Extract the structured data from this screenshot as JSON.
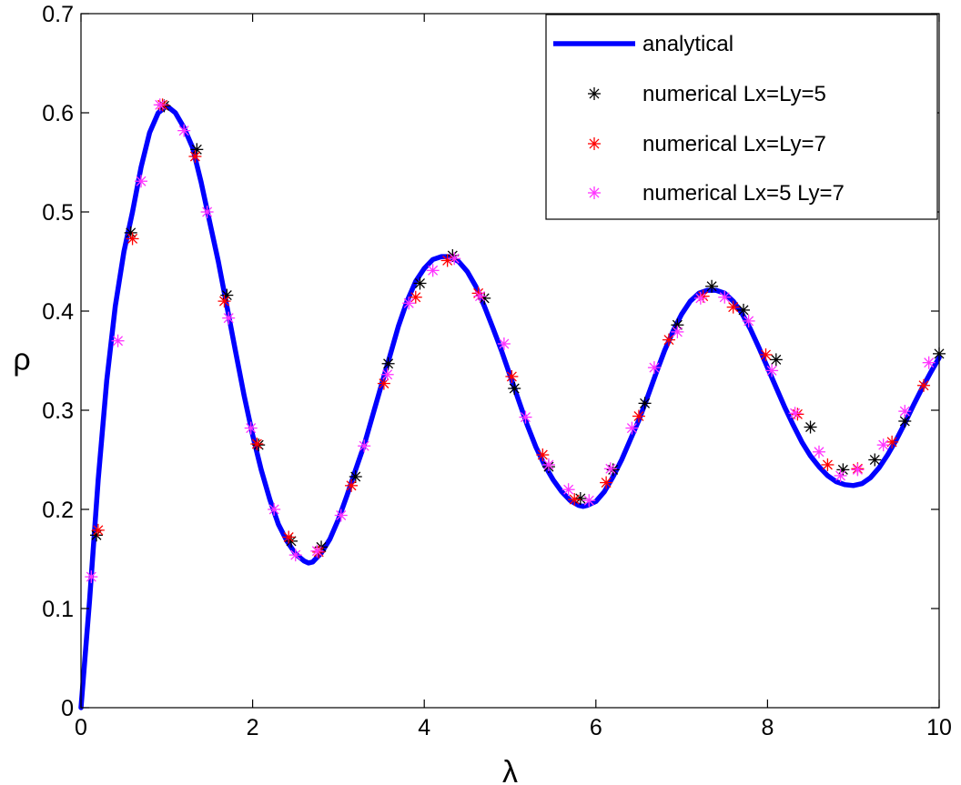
{
  "chart_data": {
    "type": "line",
    "title": "",
    "xlabel": "λ",
    "ylabel": "ρ",
    "xlim": [
      0,
      10
    ],
    "ylim": [
      0,
      0.7
    ],
    "xticks": [
      0,
      2,
      4,
      6,
      8,
      10
    ],
    "yticks": [
      0,
      0.1,
      0.2,
      0.3,
      0.4,
      0.5,
      0.6,
      0.7
    ],
    "xtick_labels": [
      "0",
      "2",
      "4",
      "6",
      "8",
      "10"
    ],
    "ytick_labels": [
      "0",
      "0.1",
      "0.2",
      "0.3",
      "0.4",
      "0.5",
      "0.6",
      "0.7"
    ],
    "grid": false,
    "legend_position": "top-right",
    "series": [
      {
        "name": "analytical",
        "style": "line",
        "color": "#0000ff",
        "points": [
          [
            0,
            0
          ],
          [
            0.1,
            0.108
          ],
          [
            0.2,
            0.23
          ],
          [
            0.3,
            0.33
          ],
          [
            0.4,
            0.405
          ],
          [
            0.5,
            0.46
          ],
          [
            0.6,
            0.5
          ],
          [
            0.7,
            0.545
          ],
          [
            0.8,
            0.58
          ],
          [
            0.9,
            0.6
          ],
          [
            1.0,
            0.607
          ],
          [
            1.1,
            0.6
          ],
          [
            1.2,
            0.585
          ],
          [
            1.3,
            0.565
          ],
          [
            1.4,
            0.53
          ],
          [
            1.5,
            0.49
          ],
          [
            1.6,
            0.45
          ],
          [
            1.7,
            0.405
          ],
          [
            1.8,
            0.36
          ],
          [
            1.9,
            0.315
          ],
          [
            2.0,
            0.275
          ],
          [
            2.1,
            0.24
          ],
          [
            2.2,
            0.21
          ],
          [
            2.3,
            0.185
          ],
          [
            2.4,
            0.168
          ],
          [
            2.5,
            0.155
          ],
          [
            2.6,
            0.148
          ],
          [
            2.65,
            0.146
          ],
          [
            2.7,
            0.147
          ],
          [
            2.8,
            0.156
          ],
          [
            2.9,
            0.17
          ],
          [
            3.0,
            0.19
          ],
          [
            3.1,
            0.214
          ],
          [
            3.2,
            0.24
          ],
          [
            3.3,
            0.265
          ],
          [
            3.4,
            0.295
          ],
          [
            3.5,
            0.325
          ],
          [
            3.6,
            0.355
          ],
          [
            3.7,
            0.385
          ],
          [
            3.8,
            0.41
          ],
          [
            3.9,
            0.43
          ],
          [
            4.0,
            0.443
          ],
          [
            4.1,
            0.452
          ],
          [
            4.2,
            0.455
          ],
          [
            4.3,
            0.455
          ],
          [
            4.4,
            0.45
          ],
          [
            4.5,
            0.44
          ],
          [
            4.6,
            0.425
          ],
          [
            4.7,
            0.405
          ],
          [
            4.8,
            0.383
          ],
          [
            4.9,
            0.36
          ],
          [
            5.0,
            0.335
          ],
          [
            5.1,
            0.31
          ],
          [
            5.2,
            0.285
          ],
          [
            5.3,
            0.263
          ],
          [
            5.4,
            0.245
          ],
          [
            5.5,
            0.23
          ],
          [
            5.6,
            0.218
          ],
          [
            5.7,
            0.209
          ],
          [
            5.8,
            0.204
          ],
          [
            5.85,
            0.203
          ],
          [
            5.9,
            0.204
          ],
          [
            6.0,
            0.208
          ],
          [
            6.1,
            0.218
          ],
          [
            6.2,
            0.233
          ],
          [
            6.3,
            0.25
          ],
          [
            6.4,
            0.27
          ],
          [
            6.5,
            0.29
          ],
          [
            6.6,
            0.313
          ],
          [
            6.7,
            0.337
          ],
          [
            6.8,
            0.36
          ],
          [
            6.9,
            0.38
          ],
          [
            7.0,
            0.397
          ],
          [
            7.1,
            0.41
          ],
          [
            7.2,
            0.418
          ],
          [
            7.3,
            0.421
          ],
          [
            7.4,
            0.421
          ],
          [
            7.5,
            0.418
          ],
          [
            7.6,
            0.41
          ],
          [
            7.7,
            0.398
          ],
          [
            7.8,
            0.382
          ],
          [
            7.9,
            0.363
          ],
          [
            8.0,
            0.343
          ],
          [
            8.1,
            0.323
          ],
          [
            8.2,
            0.303
          ],
          [
            8.3,
            0.285
          ],
          [
            8.4,
            0.268
          ],
          [
            8.5,
            0.254
          ],
          [
            8.6,
            0.243
          ],
          [
            8.7,
            0.234
          ],
          [
            8.8,
            0.228
          ],
          [
            8.9,
            0.225
          ],
          [
            9.0,
            0.224
          ],
          [
            9.1,
            0.226
          ],
          [
            9.2,
            0.232
          ],
          [
            9.3,
            0.242
          ],
          [
            9.4,
            0.255
          ],
          [
            9.5,
            0.27
          ],
          [
            9.6,
            0.287
          ],
          [
            9.7,
            0.305
          ],
          [
            9.8,
            0.322
          ],
          [
            9.9,
            0.338
          ],
          [
            10.0,
            0.353
          ]
        ]
      },
      {
        "name": "numerical Lx=Ly=5",
        "style": "markers",
        "marker": "asterisk",
        "color": "#000000",
        "points": [
          [
            0.18,
            0.174
          ],
          [
            0.58,
            0.479
          ],
          [
            0.97,
            0.607
          ],
          [
            1.35,
            0.563
          ],
          [
            1.7,
            0.416
          ],
          [
            2.07,
            0.265
          ],
          [
            2.45,
            0.168
          ],
          [
            2.8,
            0.162
          ],
          [
            3.2,
            0.233
          ],
          [
            3.58,
            0.347
          ],
          [
            3.95,
            0.428
          ],
          [
            4.33,
            0.456
          ],
          [
            4.7,
            0.413
          ],
          [
            5.05,
            0.322
          ],
          [
            5.45,
            0.243
          ],
          [
            5.82,
            0.211
          ],
          [
            6.2,
            0.24
          ],
          [
            6.57,
            0.307
          ],
          [
            6.95,
            0.386
          ],
          [
            7.35,
            0.425
          ],
          [
            7.72,
            0.401
          ],
          [
            8.1,
            0.351
          ],
          [
            8.5,
            0.283
          ],
          [
            8.88,
            0.24
          ],
          [
            9.25,
            0.25
          ],
          [
            9.6,
            0.289
          ],
          [
            10.0,
            0.357
          ]
        ]
      },
      {
        "name": "numerical Lx=Ly=7",
        "style": "markers",
        "marker": "asterisk",
        "color": "#ff0000",
        "points": [
          [
            0.2,
            0.179
          ],
          [
            0.6,
            0.473
          ],
          [
            0.95,
            0.608
          ],
          [
            1.33,
            0.556
          ],
          [
            1.67,
            0.41
          ],
          [
            2.05,
            0.266
          ],
          [
            2.42,
            0.172
          ],
          [
            2.77,
            0.157
          ],
          [
            3.15,
            0.224
          ],
          [
            3.53,
            0.327
          ],
          [
            3.9,
            0.414
          ],
          [
            4.27,
            0.451
          ],
          [
            4.63,
            0.418
          ],
          [
            5.02,
            0.334
          ],
          [
            5.38,
            0.255
          ],
          [
            5.75,
            0.21
          ],
          [
            6.12,
            0.227
          ],
          [
            6.5,
            0.294
          ],
          [
            6.85,
            0.371
          ],
          [
            7.25,
            0.415
          ],
          [
            7.6,
            0.404
          ],
          [
            7.98,
            0.356
          ],
          [
            8.35,
            0.296
          ],
          [
            8.7,
            0.245
          ],
          [
            9.05,
            0.241
          ],
          [
            9.45,
            0.268
          ],
          [
            9.82,
            0.325
          ]
        ]
      },
      {
        "name": "numerical Lx=5 Ly=7",
        "style": "markers",
        "marker": "asterisk",
        "color": "#ff33ff",
        "points": [
          [
            0.12,
            0.132
          ],
          [
            0.43,
            0.37
          ],
          [
            0.7,
            0.531
          ],
          [
            0.92,
            0.608
          ],
          [
            1.2,
            0.582
          ],
          [
            1.47,
            0.5
          ],
          [
            1.72,
            0.393
          ],
          [
            1.98,
            0.282
          ],
          [
            2.25,
            0.2
          ],
          [
            2.5,
            0.154
          ],
          [
            2.75,
            0.158
          ],
          [
            3.03,
            0.194
          ],
          [
            3.3,
            0.264
          ],
          [
            3.57,
            0.336
          ],
          [
            3.82,
            0.408
          ],
          [
            4.1,
            0.441
          ],
          [
            4.35,
            0.453
          ],
          [
            4.65,
            0.415
          ],
          [
            4.93,
            0.367
          ],
          [
            5.18,
            0.293
          ],
          [
            5.45,
            0.245
          ],
          [
            5.68,
            0.22
          ],
          [
            5.92,
            0.209
          ],
          [
            6.17,
            0.241
          ],
          [
            6.42,
            0.282
          ],
          [
            6.68,
            0.343
          ],
          [
            6.95,
            0.379
          ],
          [
            7.22,
            0.413
          ],
          [
            7.5,
            0.414
          ],
          [
            7.78,
            0.39
          ],
          [
            8.05,
            0.34
          ],
          [
            8.32,
            0.297
          ],
          [
            8.6,
            0.258
          ],
          [
            8.85,
            0.234
          ],
          [
            9.05,
            0.24
          ],
          [
            9.35,
            0.265
          ],
          [
            9.6,
            0.299
          ],
          [
            9.88,
            0.348
          ]
        ]
      }
    ]
  }
}
